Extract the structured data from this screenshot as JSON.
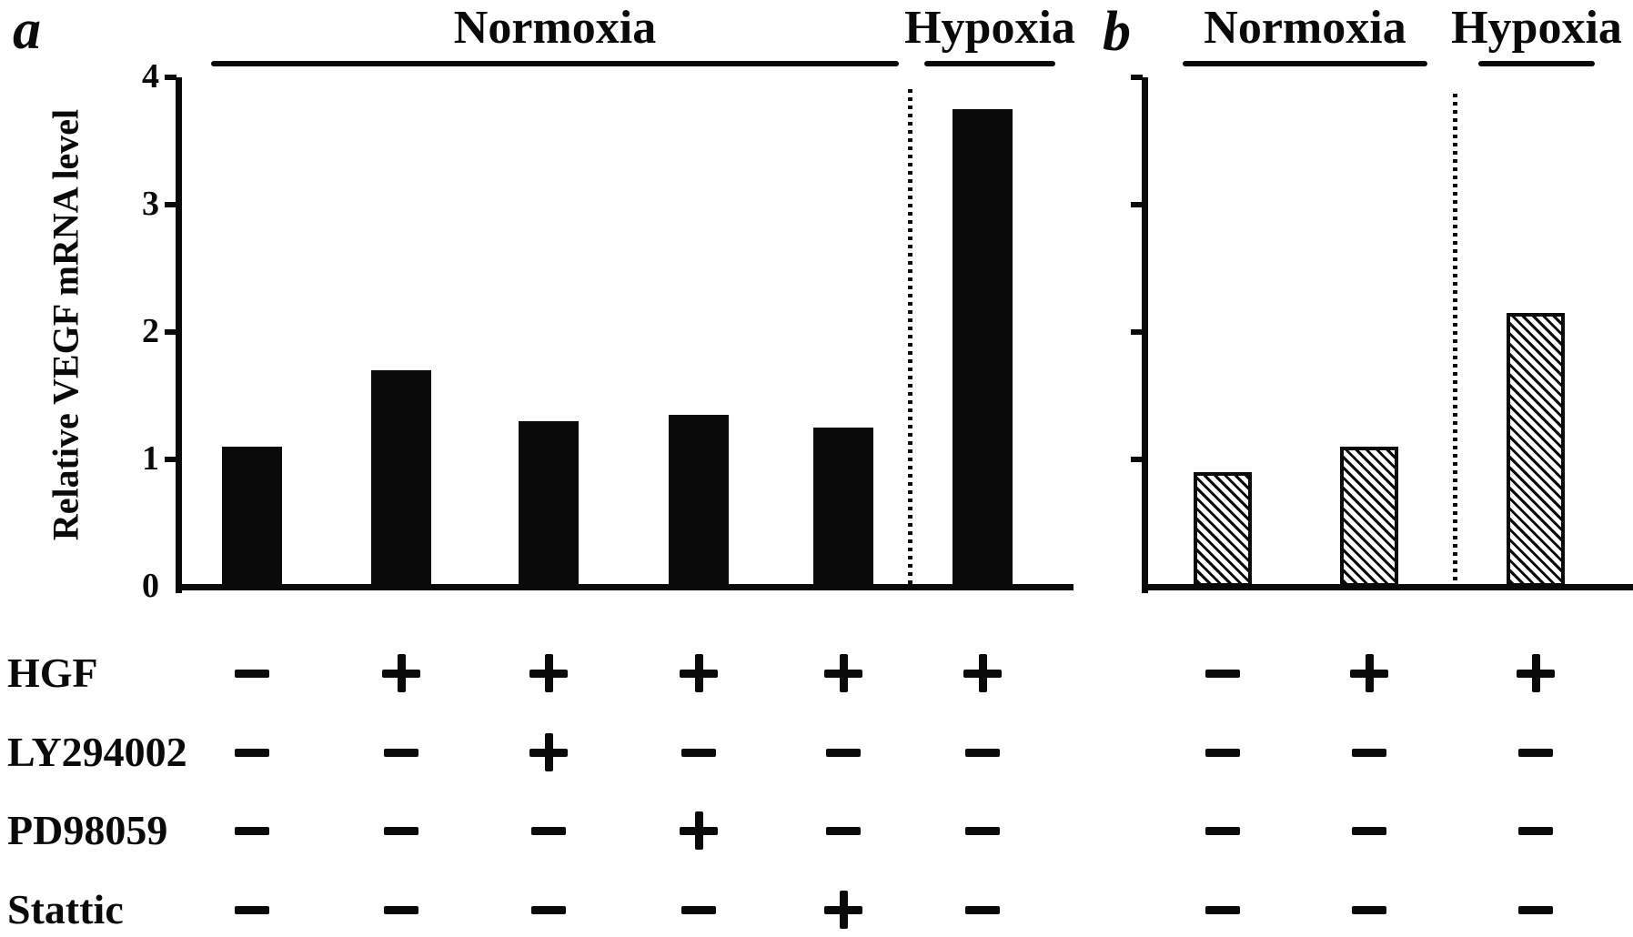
{
  "colors": {
    "ink": "#0a0a0a",
    "background": "#ffffff"
  },
  "condition_rows": [
    "HGF",
    "LY294002",
    "PD98059",
    "Stattic"
  ],
  "chart_data": [
    {
      "type": "bar",
      "panel_label": "a",
      "ylabel": "Relative VEGF mRNA level",
      "ylim": [
        0,
        4
      ],
      "yticks": [
        "0",
        "1",
        "2",
        "3",
        "4"
      ],
      "grid": false,
      "legend": "none",
      "group_headers": [
        "Normoxia",
        "Hypoxia"
      ],
      "bars_per_group": [
        5,
        1
      ],
      "bar_style": "solid-black",
      "values": [
        1.1,
        1.7,
        1.3,
        1.35,
        1.25,
        3.75
      ],
      "conditions": [
        {
          "label": "HGF",
          "signs": [
            "−",
            "+",
            "+",
            "+",
            "+",
            "+"
          ]
        },
        {
          "label": "LY294002",
          "signs": [
            "−",
            "−",
            "+",
            "−",
            "−",
            "−"
          ]
        },
        {
          "label": "PD98059",
          "signs": [
            "−",
            "−",
            "−",
            "+",
            "−",
            "−"
          ]
        },
        {
          "label": "Stattic",
          "signs": [
            "−",
            "−",
            "−",
            "−",
            "+",
            "−"
          ]
        }
      ]
    },
    {
      "type": "bar",
      "panel_label": "b",
      "ylabel": "",
      "ylim": [
        0,
        4
      ],
      "yticks": [],
      "grid": false,
      "legend": "none",
      "group_headers": [
        "Normoxia",
        "Hypoxia"
      ],
      "bars_per_group": [
        2,
        1
      ],
      "bar_style": "hatched-diagonal",
      "values": [
        0.9,
        1.1,
        2.15
      ],
      "conditions": [
        {
          "label": "HGF",
          "signs": [
            "−",
            "+",
            "+"
          ]
        },
        {
          "label": "LY294002",
          "signs": [
            "−",
            "−",
            "−"
          ]
        },
        {
          "label": "PD98059",
          "signs": [
            "−",
            "−",
            "−"
          ]
        },
        {
          "label": "Stattic",
          "signs": [
            "−",
            "−",
            "−"
          ]
        }
      ]
    }
  ]
}
